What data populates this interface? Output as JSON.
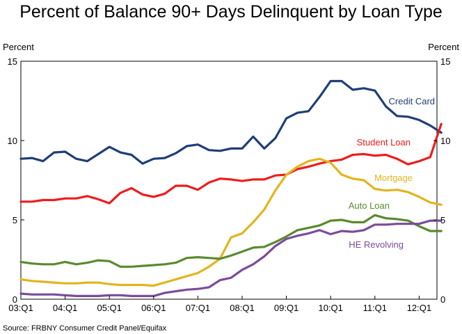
{
  "title": "Percent of Balance 90+ Days Delinquent by Loan Type",
  "source": "Source: FRBNY Consumer Credit Panel/Equifax",
  "chart_data": {
    "type": "line",
    "title": "Percent of Balance 90+ Days Delinquent by Loan Type",
    "ylabel_left": "Percent",
    "ylabel_right": "Percent",
    "ylim": [
      0,
      15
    ],
    "yticks": [
      0,
      5,
      10,
      15
    ],
    "xtick_labels": [
      "03:Q1",
      "04:Q1",
      "05:Q1",
      "06:Q1",
      "07:Q1",
      "08:Q1",
      "09:Q1",
      "10:Q1",
      "11:Q1",
      "12:Q1"
    ],
    "x": [
      "03:Q1",
      "03:Q2",
      "03:Q3",
      "03:Q4",
      "04:Q1",
      "04:Q2",
      "04:Q3",
      "04:Q4",
      "05:Q1",
      "05:Q2",
      "05:Q3",
      "05:Q4",
      "06:Q1",
      "06:Q2",
      "06:Q3",
      "06:Q4",
      "07:Q1",
      "07:Q2",
      "07:Q3",
      "07:Q4",
      "08:Q1",
      "08:Q2",
      "08:Q3",
      "08:Q4",
      "09:Q1",
      "09:Q2",
      "09:Q3",
      "09:Q4",
      "10:Q1",
      "10:Q2",
      "10:Q3",
      "10:Q4",
      "11:Q1",
      "11:Q2",
      "11:Q3",
      "11:Q4",
      "12:Q1",
      "12:Q2",
      "12:Q3"
    ],
    "grid": false,
    "series": [
      {
        "name": "Credit Card",
        "color": "#1f3e78",
        "values": [
          8.85,
          8.9,
          8.7,
          9.25,
          9.3,
          8.85,
          8.7,
          9.15,
          9.6,
          9.25,
          9.1,
          8.55,
          8.85,
          8.9,
          9.2,
          9.65,
          9.75,
          9.4,
          9.35,
          9.5,
          9.5,
          10.25,
          9.5,
          10.15,
          11.4,
          11.75,
          11.85,
          12.75,
          13.75,
          13.75,
          13.2,
          13.3,
          13.15,
          12.15,
          11.55,
          11.5,
          11.3,
          10.95,
          10.5
        ]
      },
      {
        "name": "Student Loan",
        "color": "#ee1c1c",
        "values": [
          6.15,
          6.15,
          6.25,
          6.25,
          6.35,
          6.35,
          6.5,
          6.3,
          6.05,
          6.7,
          7.0,
          6.6,
          6.45,
          6.65,
          7.15,
          7.15,
          6.9,
          7.35,
          7.6,
          7.55,
          7.45,
          7.55,
          7.55,
          7.8,
          7.85,
          8.2,
          8.35,
          8.55,
          8.7,
          8.8,
          9.1,
          9.15,
          9.05,
          9.1,
          8.85,
          8.5,
          8.7,
          8.95,
          11.05
        ]
      },
      {
        "name": "Mortgage",
        "color": "#e2b51e",
        "values": [
          1.25,
          1.15,
          1.1,
          1.05,
          1.0,
          1.0,
          1.05,
          1.05,
          0.95,
          0.9,
          0.9,
          0.9,
          0.85,
          1.05,
          1.25,
          1.45,
          1.65,
          2.05,
          2.55,
          3.9,
          4.15,
          4.85,
          5.65,
          6.85,
          7.85,
          8.35,
          8.7,
          8.85,
          8.6,
          7.85,
          7.6,
          7.5,
          6.95,
          6.85,
          6.9,
          6.75,
          6.45,
          6.1,
          5.95
        ]
      },
      {
        "name": "Auto Loan",
        "color": "#5a8a2e",
        "values": [
          2.35,
          2.25,
          2.2,
          2.2,
          2.35,
          2.2,
          2.3,
          2.45,
          2.4,
          2.05,
          2.05,
          2.1,
          2.15,
          2.2,
          2.3,
          2.6,
          2.65,
          2.6,
          2.55,
          2.75,
          3.0,
          3.25,
          3.3,
          3.6,
          3.95,
          4.35,
          4.5,
          4.65,
          4.95,
          5.0,
          4.85,
          4.85,
          5.3,
          5.1,
          5.05,
          4.95,
          4.6,
          4.3,
          4.3
        ]
      },
      {
        "name": "HE Revolving",
        "color": "#7a4b9c",
        "values": [
          0.35,
          0.3,
          0.3,
          0.3,
          0.25,
          0.2,
          0.2,
          0.2,
          0.25,
          0.25,
          0.2,
          0.2,
          0.2,
          0.4,
          0.5,
          0.6,
          0.65,
          0.75,
          1.2,
          1.35,
          1.85,
          2.2,
          2.7,
          3.35,
          3.8,
          4.0,
          4.15,
          4.35,
          4.1,
          4.3,
          4.25,
          4.35,
          4.7,
          4.7,
          4.75,
          4.75,
          4.75,
          4.95,
          4.95
        ]
      }
    ],
    "annotations": [
      "Credit Card",
      "Student Loan",
      "Mortgage",
      "Auto Loan",
      "HE Revolving"
    ]
  }
}
